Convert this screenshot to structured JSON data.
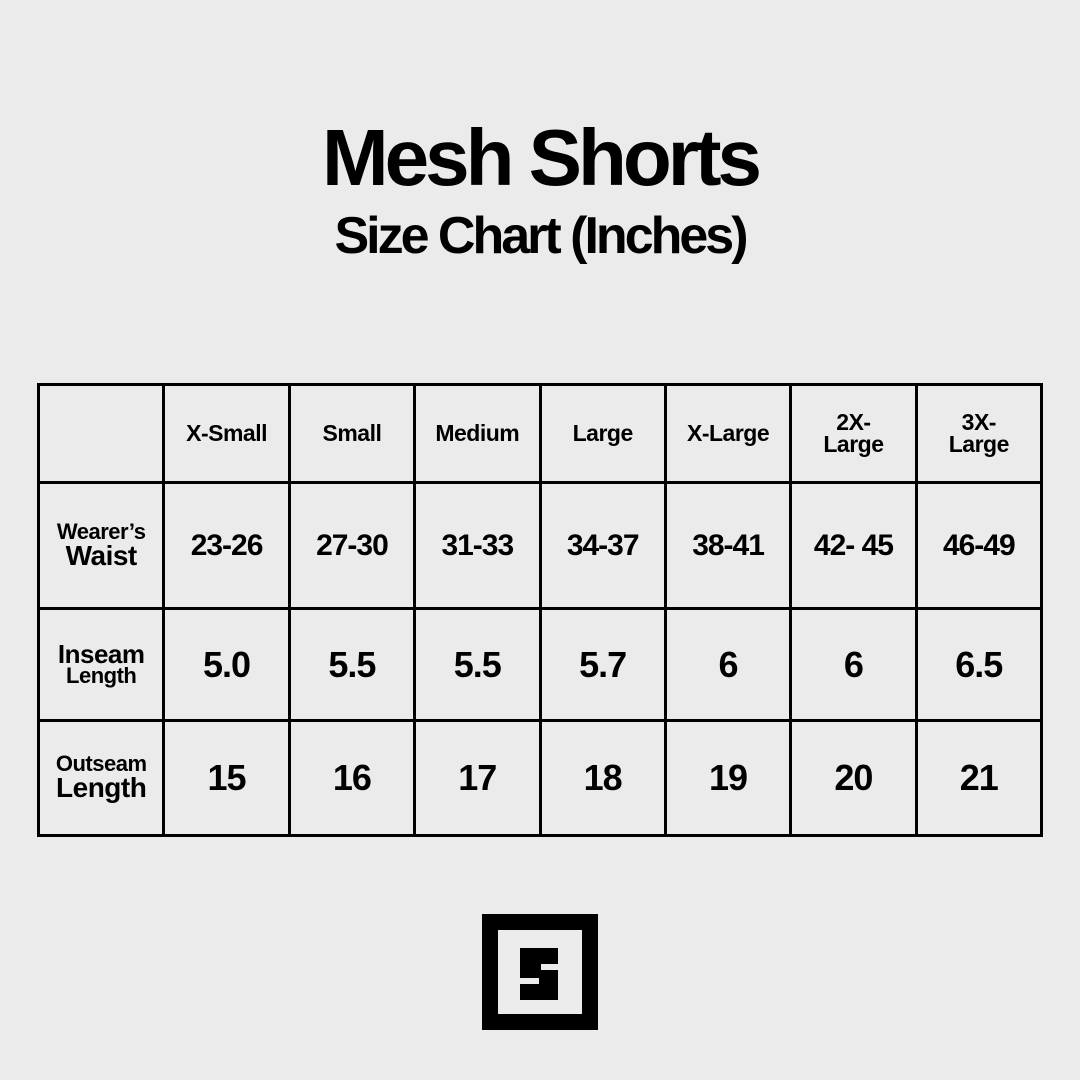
{
  "header": {
    "title": "Mesh Shorts",
    "subtitle": "Size Chart (Inches)"
  },
  "table": {
    "columns": [
      "X-Small",
      "Small",
      "Medium",
      "Large",
      "X-Large",
      "2X-\nLarge",
      "3X-\nLarge"
    ],
    "rows": [
      {
        "label_top": "Wearer’s",
        "label_bottom": "Waist",
        "values": [
          "23-26",
          "27-30",
          "31-33",
          "34-37",
          "38-41",
          "42- 45",
          "46-49"
        ]
      },
      {
        "label_top": "Inseam",
        "label_bottom": "Length",
        "values": [
          "5.0",
          "5.5",
          "5.5",
          "5.7",
          "6",
          "6",
          "6.5"
        ]
      },
      {
        "label_top": "Outseam",
        "label_bottom": "Length",
        "values": [
          "15",
          "16",
          "17",
          "18",
          "19",
          "20",
          "21"
        ]
      }
    ]
  },
  "logo": {
    "letter": "S",
    "icon": "square-s-logo"
  },
  "colors": {
    "background": "#ebebeb",
    "ink": "#000000"
  }
}
